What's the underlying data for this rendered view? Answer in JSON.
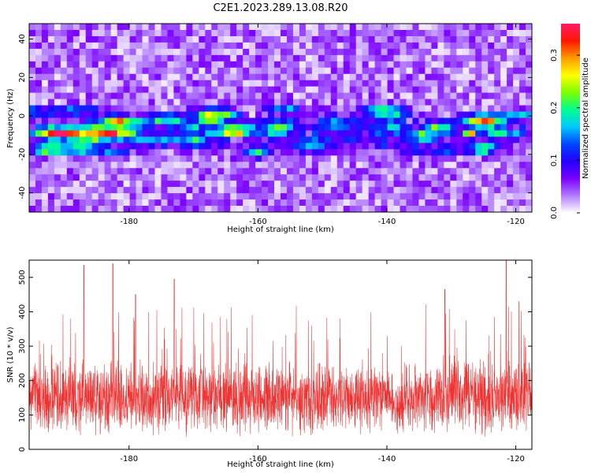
{
  "figure": {
    "title": "C2E1.2023.289.13.08.R20"
  },
  "chart_data": [
    {
      "type": "heatmap",
      "xlabel": "Height of straight line (km)",
      "ylabel": "Frequency (Hz)",
      "xlim": [
        -195.5,
        -117.5
      ],
      "ylim": [
        -50,
        48
      ],
      "x_ticks": [
        -180,
        -160,
        -140,
        -120
      ],
      "y_ticks": [
        -40,
        -20,
        0,
        20,
        40
      ],
      "colorbar": {
        "label": "Normalized spectral amplitude",
        "range": [
          0,
          0.36
        ],
        "ticks": [
          0.0,
          0.1,
          0.2,
          0.3
        ],
        "colors": [
          "#ffffff",
          "#b27cff",
          "#7a00ff",
          "#2200ff",
          "#0044ff",
          "#00c8ff",
          "#00ff90",
          "#7dff00",
          "#ffff00",
          "#ff9a00",
          "#ff1800",
          "#ff1a6a"
        ]
      },
      "band": {
        "center_frequency_hz": -7,
        "peaks": [
          {
            "x": -180,
            "y": -8,
            "amplitude": 0.34
          },
          {
            "x": -173,
            "y": -1,
            "amplitude": 0.18
          },
          {
            "x": -170,
            "y": -6,
            "amplitude": 0.2
          },
          {
            "x": -127,
            "y": -9,
            "amplitude": 0.3
          },
          {
            "x": -124,
            "y": -4,
            "amplitude": 0.21
          },
          {
            "x": -122,
            "y": -2,
            "amplitude": 0.19
          }
        ]
      }
    },
    {
      "type": "line",
      "xlabel": "Height of straight line (km)",
      "ylabel": "SNR (10 * v/v)",
      "xlim": [
        -195.5,
        -117.5
      ],
      "ylim": [
        0,
        550
      ],
      "x_ticks": [
        -180,
        -160,
        -140,
        -120
      ],
      "y_ticks": [
        0,
        100,
        200,
        300,
        400,
        500
      ],
      "color": "#ee3333",
      "series": [
        {
          "x_range": [
            -195.5,
            -117.5
          ],
          "baseline": 150,
          "spike_peaks": [
            {
              "x": -187,
              "y": 535
            },
            {
              "x": -182.5,
              "y": 540
            },
            {
              "x": -179,
              "y": 450
            },
            {
              "x": -173,
              "y": 495
            },
            {
              "x": -131,
              "y": 465
            },
            {
              "x": -121.5,
              "y": 550
            },
            {
              "x": -119.5,
              "y": 430
            }
          ]
        }
      ]
    }
  ]
}
